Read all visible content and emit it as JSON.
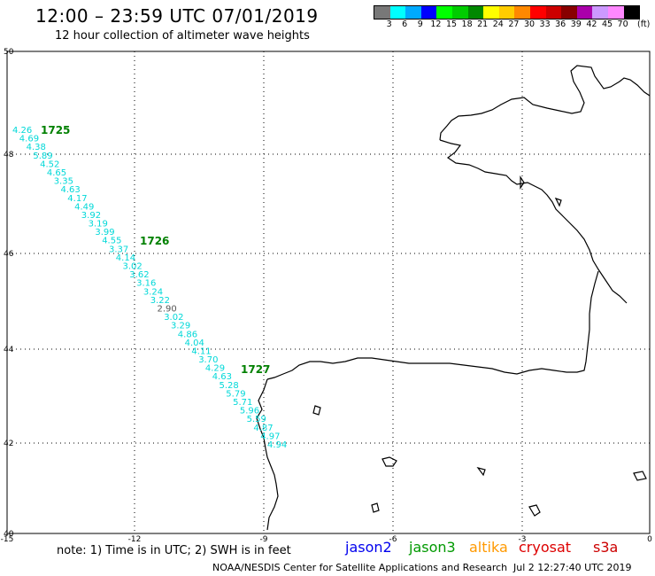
{
  "header": {
    "title": "12:00 – 23:59 UTC 07/01/2019",
    "subtitle": "12 hour collection of altimeter wave heights"
  },
  "legend": {
    "unit": "(ft)",
    "ticks": [
      "3",
      "6",
      "9",
      "12",
      "15",
      "18",
      "21",
      "24",
      "27",
      "30",
      "33",
      "36",
      "39",
      "42",
      "45",
      "70"
    ],
    "colors": [
      "#787878",
      "#00ffff",
      "#00aaff",
      "#0000ff",
      "#00ff00",
      "#00cc00",
      "#008800",
      "#ffff00",
      "#ffcc00",
      "#ff8800",
      "#ff0000",
      "#cc0000",
      "#880000",
      "#aa00aa",
      "#cc99ff",
      "#ff88ff",
      "#000000"
    ]
  },
  "axes": {
    "lat_labels": [
      "50",
      "48",
      "46",
      "44",
      "42",
      "40"
    ],
    "lon_labels": [
      "-15",
      "-12",
      "-9",
      "-6",
      "-3",
      "0"
    ]
  },
  "track": {
    "color": "#00d8d8",
    "anomaly_color": "#555555",
    "pass_color": "#008000",
    "passes": [
      "1725",
      "1726",
      "1727"
    ],
    "values": [
      "4.26",
      "4.69",
      "4.38",
      "5.89",
      "4.52",
      "4.65",
      "3.35",
      "4.63",
      "4.17",
      "4.49",
      "3.92",
      "3.19",
      "3.99",
      "4.55",
      "3.37",
      "4.14",
      "3.02",
      "3.62",
      "3.16",
      "3.24",
      "3.22",
      "2.90",
      "3.02",
      "3.29",
      "4.86",
      "4.04",
      "4.11",
      "3.70",
      "4.29",
      "4.63",
      "5.28",
      "5.79",
      "5.71",
      "5.96",
      "5.59",
      "4.87",
      "4.97",
      "4.94"
    ]
  },
  "footer": {
    "note": "note:  1) Time is in UTC;  2) SWH is in feet",
    "satellites": [
      {
        "name": "jason2",
        "color": "#0000ee"
      },
      {
        "name": "jason3",
        "color": "#009900"
      },
      {
        "name": "altika",
        "color": "#ff9900"
      },
      {
        "name": "cryosat",
        "color": "#dd0000"
      },
      {
        "name": "s3a",
        "color": "#cc0000"
      }
    ],
    "credit": "NOAA/NESDIS Center for Satellite Applications and Research",
    "timestamp": "Jul  2 12:27:40 UTC 2019"
  }
}
